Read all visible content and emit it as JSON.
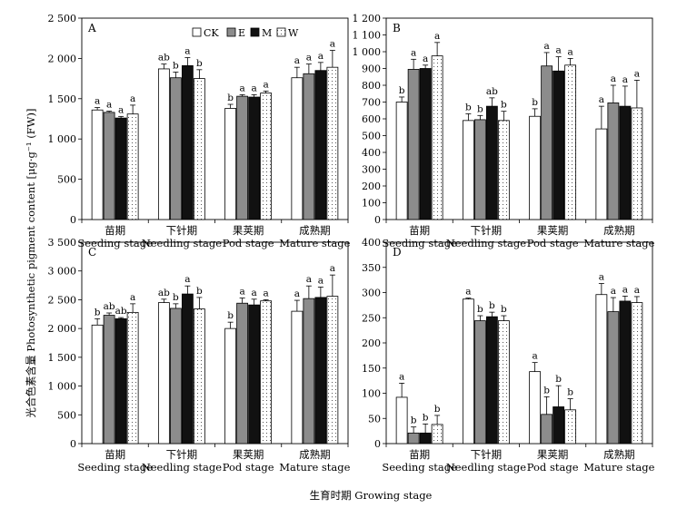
{
  "figure": {
    "ylabel": "光合色素含量 Photosynthetic pigment content [μg·g⁻¹ (FW)]",
    "xlabel": "生育时期 Growing stage",
    "legend": [
      "CK",
      "E",
      "M",
      "W"
    ],
    "colors": {
      "CK": "#ffffff",
      "E": "#8c8c8c",
      "M": "#111111",
      "W": "#ffffff"
    }
  },
  "chart_data": [
    {
      "panel": "A",
      "type": "bar",
      "categories": [
        [
          "苗期",
          "Seeding stage"
        ],
        [
          "下针期",
          "Needling stage"
        ],
        [
          "果荚期",
          "Pod stage"
        ],
        [
          "成熟期",
          "Mature stage"
        ]
      ],
      "ylim": [
        0,
        2500
      ],
      "yticks": [
        "0",
        "500",
        "1 000",
        "1 500",
        "2 000",
        "2 500"
      ],
      "ytick_values": [
        0,
        500,
        1000,
        1500,
        2000,
        2500
      ],
      "legend_position": "top",
      "series": [
        {
          "name": "CK",
          "values": [
            1360,
            1870,
            1380,
            1760
          ],
          "errors": [
            30,
            60,
            50,
            130
          ],
          "labels": [
            "a",
            "ab",
            "b",
            "a"
          ]
        },
        {
          "name": "E",
          "values": [
            1330,
            1760,
            1530,
            1810
          ],
          "errors": [
            15,
            70,
            20,
            120
          ],
          "labels": [
            "a",
            "b",
            "a",
            "a"
          ]
        },
        {
          "name": "M",
          "values": [
            1260,
            1910,
            1520,
            1850
          ],
          "errors": [
            20,
            100,
            30,
            100
          ],
          "labels": [
            "a",
            "a",
            "a",
            "a"
          ]
        },
        {
          "name": "W",
          "values": [
            1310,
            1750,
            1570,
            1890
          ],
          "errors": [
            110,
            110,
            25,
            210
          ],
          "labels": [
            "a",
            "b",
            "a",
            "a"
          ]
        }
      ]
    },
    {
      "panel": "B",
      "type": "bar",
      "categories": [
        [
          "苗期",
          "Seeding stage"
        ],
        [
          "下针期",
          "Needling stage"
        ],
        [
          "果荚期",
          "Pod stage"
        ],
        [
          "成熟期",
          "Mature stage"
        ]
      ],
      "ylim": [
        0,
        1200
      ],
      "yticks": [
        "0",
        "100",
        "200",
        "300",
        "400",
        "500",
        "600",
        "700",
        "800",
        "900",
        "1 000",
        "1 100",
        "1 200"
      ],
      "ytick_values": [
        0,
        100,
        200,
        300,
        400,
        500,
        600,
        700,
        800,
        900,
        1000,
        1100,
        1200
      ],
      "series": [
        {
          "name": "CK",
          "values": [
            700,
            590,
            615,
            540
          ],
          "errors": [
            30,
            40,
            45,
            135
          ],
          "labels": [
            "b",
            "b",
            "b",
            "a"
          ]
        },
        {
          "name": "E",
          "values": [
            895,
            595,
            915,
            695
          ],
          "errors": [
            60,
            25,
            80,
            105
          ],
          "labels": [
            "a",
            "b",
            "a",
            "a"
          ]
        },
        {
          "name": "M",
          "values": [
            900,
            675,
            885,
            675
          ],
          "errors": [
            20,
            50,
            85,
            120
          ],
          "labels": [
            "a",
            "ab",
            "a",
            "a"
          ]
        },
        {
          "name": "W",
          "values": [
            975,
            590,
            920,
            665
          ],
          "errors": [
            80,
            55,
            40,
            165
          ],
          "labels": [
            "a",
            "b",
            "a",
            "a"
          ]
        }
      ]
    },
    {
      "panel": "C",
      "type": "bar",
      "categories": [
        [
          "苗期",
          "Seeding stage"
        ],
        [
          "下针期",
          "Needling stage"
        ],
        [
          "果荚期",
          "Pod stage"
        ],
        [
          "成熟期",
          "Mature stage"
        ]
      ],
      "ylim": [
        0,
        3500
      ],
      "yticks": [
        "0",
        "500",
        "1 000",
        "1 500",
        "2 000",
        "2 500",
        "3 000",
        "3 500"
      ],
      "ytick_values": [
        0,
        500,
        1000,
        1500,
        2000,
        2500,
        3000,
        3500
      ],
      "series": [
        {
          "name": "CK",
          "values": [
            2060,
            2450,
            2000,
            2300
          ],
          "errors": [
            110,
            60,
            110,
            190
          ],
          "labels": [
            "b",
            "ab",
            "b",
            "a"
          ]
        },
        {
          "name": "E",
          "values": [
            2230,
            2350,
            2440,
            2520
          ],
          "errors": [
            40,
            80,
            90,
            220
          ],
          "labels": [
            "ab",
            "b",
            "a",
            "a"
          ]
        },
        {
          "name": "M",
          "values": [
            2170,
            2600,
            2410,
            2540
          ],
          "errors": [
            20,
            140,
            100,
            180
          ],
          "labels": [
            "ab",
            "a",
            "a",
            "a"
          ]
        },
        {
          "name": "W",
          "values": [
            2280,
            2340,
            2480,
            2560
          ],
          "errors": [
            150,
            200,
            20,
            370
          ],
          "labels": [
            "a",
            "b",
            "a",
            "a"
          ]
        }
      ]
    },
    {
      "panel": "D",
      "type": "bar",
      "categories": [
        [
          "苗期",
          "Seeding stage"
        ],
        [
          "下针期",
          "Needling stage"
        ],
        [
          "果荚期",
          "Pod stage"
        ],
        [
          "成熟期",
          "Mature stage"
        ]
      ],
      "ylim": [
        0,
        400
      ],
      "yticks": [
        "0",
        "50",
        "100",
        "150",
        "200",
        "250",
        "300",
        "350",
        "400"
      ],
      "ytick_values": [
        0,
        50,
        100,
        150,
        200,
        250,
        300,
        350,
        400
      ],
      "series": [
        {
          "name": "CK",
          "values": [
            92,
            287,
            143,
            296
          ],
          "errors": [
            28,
            2,
            18,
            22
          ],
          "labels": [
            "a",
            "a",
            "a",
            "a"
          ]
        },
        {
          "name": "E",
          "values": [
            21,
            244,
            58,
            262
          ],
          "errors": [
            12,
            10,
            35,
            28
          ],
          "labels": [
            "b",
            "b",
            "b",
            "a"
          ]
        },
        {
          "name": "M",
          "values": [
            21,
            252,
            73,
            283
          ],
          "errors": [
            18,
            9,
            42,
            10
          ],
          "labels": [
            "b",
            "b",
            "b",
            "a"
          ]
        },
        {
          "name": "W",
          "values": [
            38,
            244,
            67,
            280
          ],
          "errors": [
            18,
            10,
            22,
            12
          ],
          "labels": [
            "b",
            "b",
            "b",
            "a"
          ]
        }
      ]
    }
  ]
}
